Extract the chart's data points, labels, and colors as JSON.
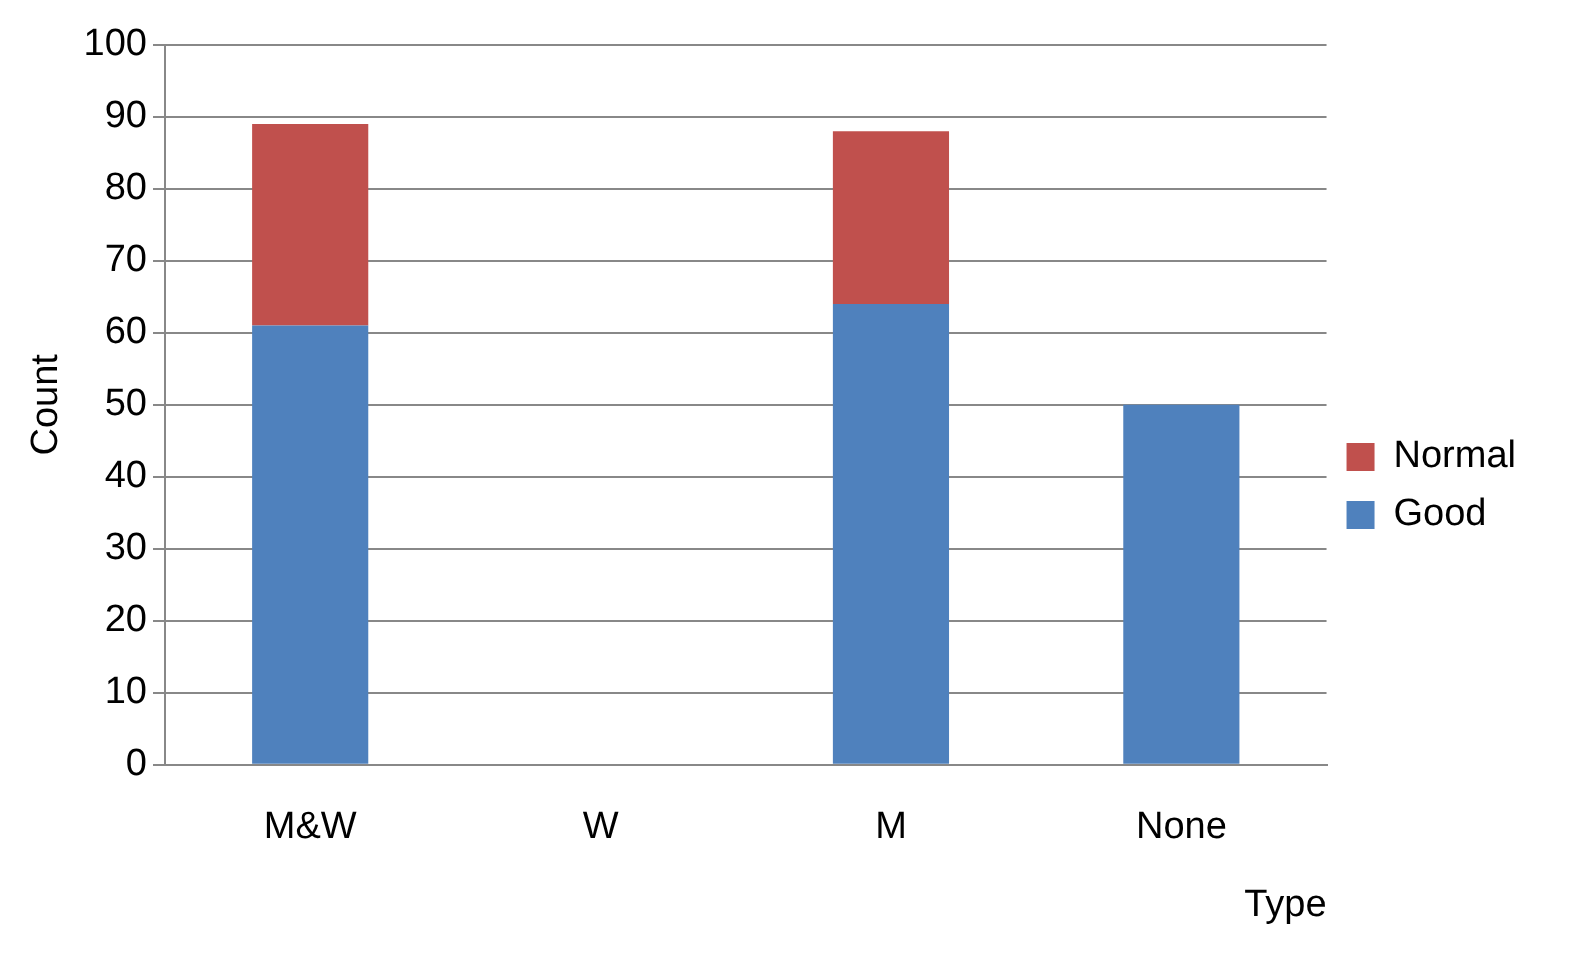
{
  "chart_data": {
    "type": "bar",
    "xlabel": "Type",
    "ylabel": "Count",
    "categories": [
      "M&W",
      "W",
      "M",
      "None"
    ],
    "series": [
      {
        "name": "Good",
        "color": "#4f81bd",
        "values": [
          61,
          0,
          64,
          50
        ]
      },
      {
        "name": "Normal",
        "color": "#c0504d",
        "values": [
          28,
          0,
          24,
          0
        ]
      }
    ],
    "stacked": true,
    "ylim": [
      0,
      100
    ],
    "yticks": [
      0,
      10,
      20,
      30,
      40,
      50,
      60,
      70,
      80,
      90,
      100
    ],
    "grid": "y",
    "legend": "right"
  }
}
